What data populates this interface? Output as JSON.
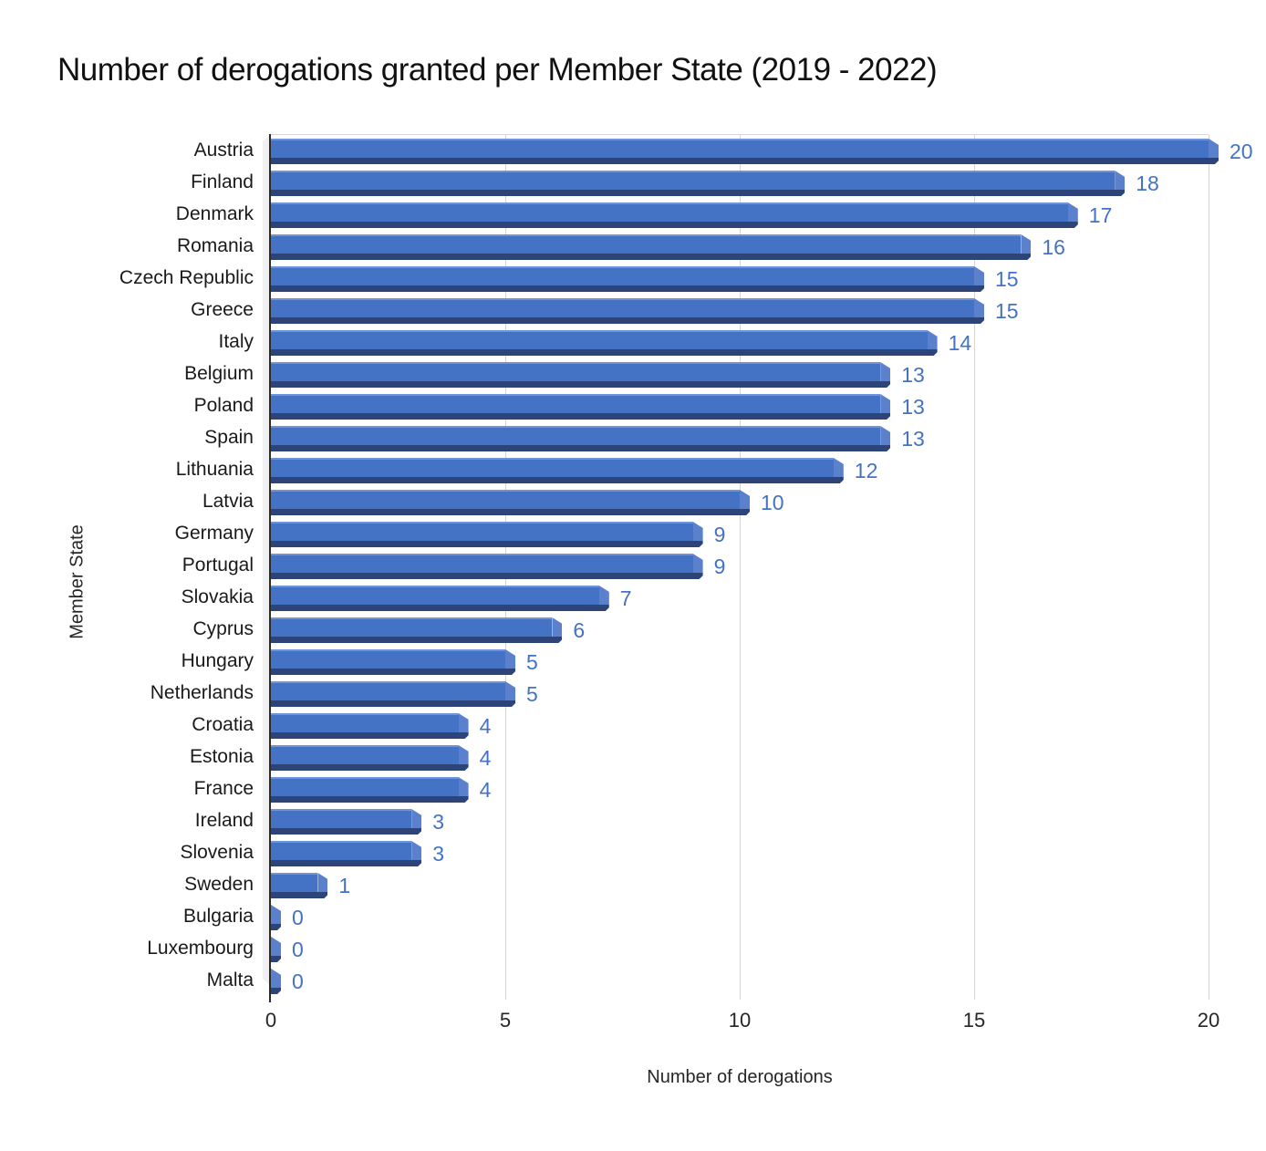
{
  "chart_data": {
    "type": "bar",
    "orientation": "horizontal",
    "title": "Number of derogations granted per Member State (2019 - 2022)",
    "xlabel": "Number of derogations",
    "ylabel": "Member State",
    "categories": [
      "Austria",
      "Finland",
      "Denmark",
      "Romania",
      "Czech Republic",
      "Greece",
      "Italy",
      "Belgium",
      "Poland",
      "Spain",
      "Lithuania",
      "Latvia",
      "Germany",
      "Portugal",
      "Slovakia",
      "Cyprus",
      "Hungary",
      "Netherlands",
      "Croatia",
      "Estonia",
      "France",
      "Ireland",
      "Slovenia",
      "Sweden",
      "Bulgaria",
      "Luxembourg",
      "Malta"
    ],
    "values": [
      20,
      18,
      17,
      16,
      15,
      15,
      14,
      13,
      13,
      13,
      12,
      10,
      9,
      9,
      7,
      6,
      5,
      5,
      4,
      4,
      4,
      3,
      3,
      1,
      0,
      0,
      0
    ],
    "xlim": [
      0,
      20
    ],
    "xticks": [
      0,
      5,
      10,
      15,
      20
    ],
    "grid": true,
    "legend": false,
    "data_labels": true,
    "colors": {
      "bar": "#4472C4",
      "bar_shadow": "#2c4478",
      "bar_end_cap": "#5b81cd",
      "value_label": "#4472C4",
      "gridline": "#d4d4d4",
      "axis_line": "#2b2b2b",
      "text": "#1a1a1a"
    }
  }
}
